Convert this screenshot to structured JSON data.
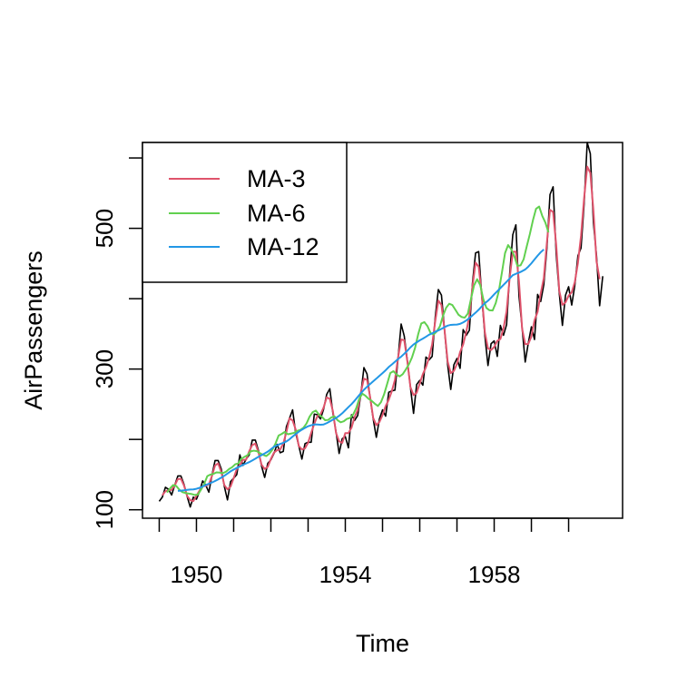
{
  "chart_data": {
    "type": "line",
    "xlabel": "Time",
    "ylabel": "AirPassengers",
    "xlim": [
      1948.55,
      1961.45
    ],
    "ylim": [
      88,
      622
    ],
    "x_ticks": [
      1949,
      1950,
      1951,
      1952,
      1953,
      1954,
      1955,
      1956,
      1957,
      1958,
      1959,
      1960
    ],
    "x_tick_labels": [
      {
        "value": 1950,
        "label": "1950"
      },
      {
        "value": 1954,
        "label": "1954"
      },
      {
        "value": 1958,
        "label": "1958"
      }
    ],
    "y_ticks": [
      100,
      200,
      300,
      400,
      500,
      600
    ],
    "y_tick_labels": [
      {
        "value": 100,
        "label": "100"
      },
      {
        "value": 300,
        "label": "300"
      },
      {
        "value": 500,
        "label": "500"
      }
    ],
    "grid": false,
    "legend_position": "top-left",
    "x_start": 1949.0,
    "frequency": 12,
    "series": [
      {
        "name": "",
        "color": "#000000",
        "values": [
          112,
          118,
          132,
          129,
          121,
          135,
          148,
          148,
          136,
          119,
          104,
          118,
          115,
          126,
          141,
          135,
          125,
          149,
          170,
          170,
          158,
          133,
          114,
          140,
          145,
          150,
          178,
          163,
          172,
          178,
          199,
          199,
          184,
          162,
          146,
          166,
          171,
          180,
          193,
          181,
          183,
          218,
          230,
          242,
          209,
          191,
          172,
          194,
          196,
          196,
          236,
          235,
          229,
          243,
          264,
          272,
          237,
          211,
          180,
          201,
          204,
          188,
          235,
          227,
          234,
          264,
          302,
          293,
          259,
          229,
          203,
          229,
          242,
          233,
          267,
          269,
          270,
          315,
          364,
          347,
          312,
          274,
          237,
          278,
          284,
          277,
          317,
          313,
          318,
          374,
          413,
          405,
          355,
          306,
          271,
          306,
          315,
          301,
          356,
          348,
          355,
          422,
          465,
          467,
          404,
          347,
          305,
          336,
          340,
          318,
          362,
          348,
          363,
          435,
          491,
          505,
          404,
          359,
          310,
          337,
          360,
          342,
          406,
          396,
          420,
          472,
          548,
          559,
          463,
          407,
          362,
          405,
          417,
          391,
          419,
          461,
          472,
          535,
          622,
          606,
          508,
          461,
          390,
          432
        ]
      },
      {
        "name": "MA-3",
        "color": "#DF536B",
        "x_start": 1949.0833,
        "values": [
          120.7,
          126.3,
          127.7,
          128.3,
          134.7,
          143.7,
          144.0,
          134.3,
          119.7,
          113.7,
          112.3,
          119.7,
          127.3,
          134.0,
          133.7,
          136.3,
          148.0,
          163.0,
          166.0,
          153.7,
          135.0,
          129.0,
          133.0,
          145.0,
          157.7,
          163.7,
          171.0,
          171.0,
          183.0,
          192.0,
          194.0,
          181.7,
          164.0,
          158.0,
          161.0,
          172.3,
          181.3,
          184.7,
          185.7,
          194.0,
          210.3,
          230.0,
          227.0,
          214.0,
          190.7,
          185.7,
          187.3,
          195.3,
          209.3,
          222.3,
          233.3,
          235.7,
          245.3,
          259.7,
          257.7,
          240.0,
          209.3,
          197.3,
          195.0,
          209.0,
          209.0,
          216.7,
          232.0,
          241.7,
          266.7,
          286.3,
          284.7,
          260.3,
          230.3,
          220.3,
          224.7,
          234.7,
          247.3,
          256.3,
          268.7,
          284.7,
          316.3,
          342.0,
          341.0,
          311.0,
          274.3,
          263.0,
          266.3,
          279.7,
          292.7,
          302.7,
          316.3,
          335.0,
          368.3,
          397.3,
          391.0,
          355.3,
          310.7,
          294.3,
          297.3,
          307.3,
          324.0,
          335.0,
          353.0,
          375.0,
          417.3,
          451.3,
          445.3,
          406.0,
          352.0,
          329.3,
          327.0,
          331.3,
          340.0,
          342.7,
          357.7,
          382.0,
          429.7,
          466.7,
          466.7,
          424.3,
          357.7,
          335.3,
          335.7,
          346.3,
          369.3,
          381.3,
          407.3,
          429.3,
          480.0,
          526.3,
          523.3,
          476.3,
          410.7,
          391.3,
          394.7,
          404.3,
          409.0,
          423.7,
          450.7,
          489.3,
          543.0,
          587.7,
          578.7,
          525.0,
          453.0,
          427.7
        ]
      },
      {
        "name": "MA-6",
        "color": "#61D04F",
        "x_start": 1949.2083,
        "values": [
          124.5,
          130.5,
          135.2,
          133.8,
          128.5,
          125.0,
          123.8,
          123.0,
          122.3,
          121.0,
          121.7,
          128.8,
          136.7,
          147.8,
          150.0,
          151.0,
          153.2,
          152.8,
          152.0,
          154.0,
          157.8,
          160.5,
          164.7,
          166.0,
          172.7,
          175.3,
          177.7,
          183.0,
          184.0,
          183.3,
          180.3,
          178.0,
          176.3,
          179.8,
          185.5,
          194.2,
          205.5,
          207.8,
          210.7,
          207.3,
          208.3,
          209.3,
          212.2,
          213.5,
          216.5,
          222.7,
          232.5,
          238.8,
          241.0,
          235.3,
          231.8,
          227.3,
          227.7,
          231.3,
          232.8,
          227.3,
          224.3,
          225.8,
          229.2,
          230.5,
          235.2,
          244.2,
          257.8,
          265.0,
          262.0,
          257.7,
          254.8,
          250.8,
          247.5,
          253.0,
          264.0,
          279.0,
          294.3,
          297.0,
          292.3,
          289.5,
          292.7,
          299.3,
          306.7,
          316.5,
          330.3,
          349.5,
          364.8,
          366.7,
          361.0,
          351.2,
          349.2,
          353.5,
          360.8,
          375.7,
          387.0,
          392.8,
          391.0,
          384.2,
          377.2,
          374.0,
          373.0,
          378.8,
          399.3,
          418.8,
          427.7,
          419.5,
          399.3,
          386.8,
          383.5,
          383.2,
          393.7,
          410.8,
          437.2,
          464.8,
          476.2,
          470.2,
          460.3,
          446.7,
          447.3,
          456.0,
          474.3,
          491.8,
          511.5,
          527.8,
          531.0,
          517.7,
          508.2,
          494.3
        ]
      },
      {
        "name": "MA-12",
        "color": "#2297E6",
        "x_start": 1949.5,
        "values": [
          126.8,
          127.2,
          127.6,
          128.3,
          128.8,
          129.0,
          129.8,
          131.2,
          133.1,
          135.2,
          137.0,
          138.8,
          140.9,
          143.2,
          145.7,
          148.4,
          151.5,
          154.6,
          157.2,
          159.5,
          161.6,
          163.8,
          165.7,
          167.7,
          170.1,
          172.6,
          175.3,
          177.6,
          180.0,
          182.6,
          186.0,
          189.6,
          191.6,
          193.5,
          195.1,
          197.1,
          200.2,
          204.0,
          207.6,
          210.9,
          213.8,
          216.4,
          218.7,
          220.1,
          221.3,
          221.1,
          220.8,
          221.2,
          223.1,
          225.5,
          228.1,
          230.4,
          233.5,
          237.1,
          241.5,
          245.9,
          250.1,
          255.0,
          260.4,
          265.6,
          270.5,
          274.8,
          278.8,
          282.6,
          286.4,
          290.4,
          294.2,
          298.3,
          302.9,
          306.5,
          310.4,
          314.2,
          317.6,
          321.7,
          326.0,
          330.8,
          334.9,
          337.9,
          340.8,
          343.2,
          345.9,
          348.8,
          350.7,
          353.0,
          354.9,
          357.1,
          359.5,
          361.7,
          362.8,
          363.0,
          363.2,
          364.2,
          366.3,
          369.0,
          372.5,
          376.2,
          380.1,
          384.3,
          389.1,
          393.5,
          397.1,
          401.4,
          406.2,
          410.5,
          415.1,
          419.6,
          424.0,
          428.8,
          433.4,
          435.3,
          437.0,
          439.1,
          441.5,
          445.5,
          450.3,
          455.7,
          461.1,
          466.0,
          470.0
        ]
      }
    ]
  }
}
